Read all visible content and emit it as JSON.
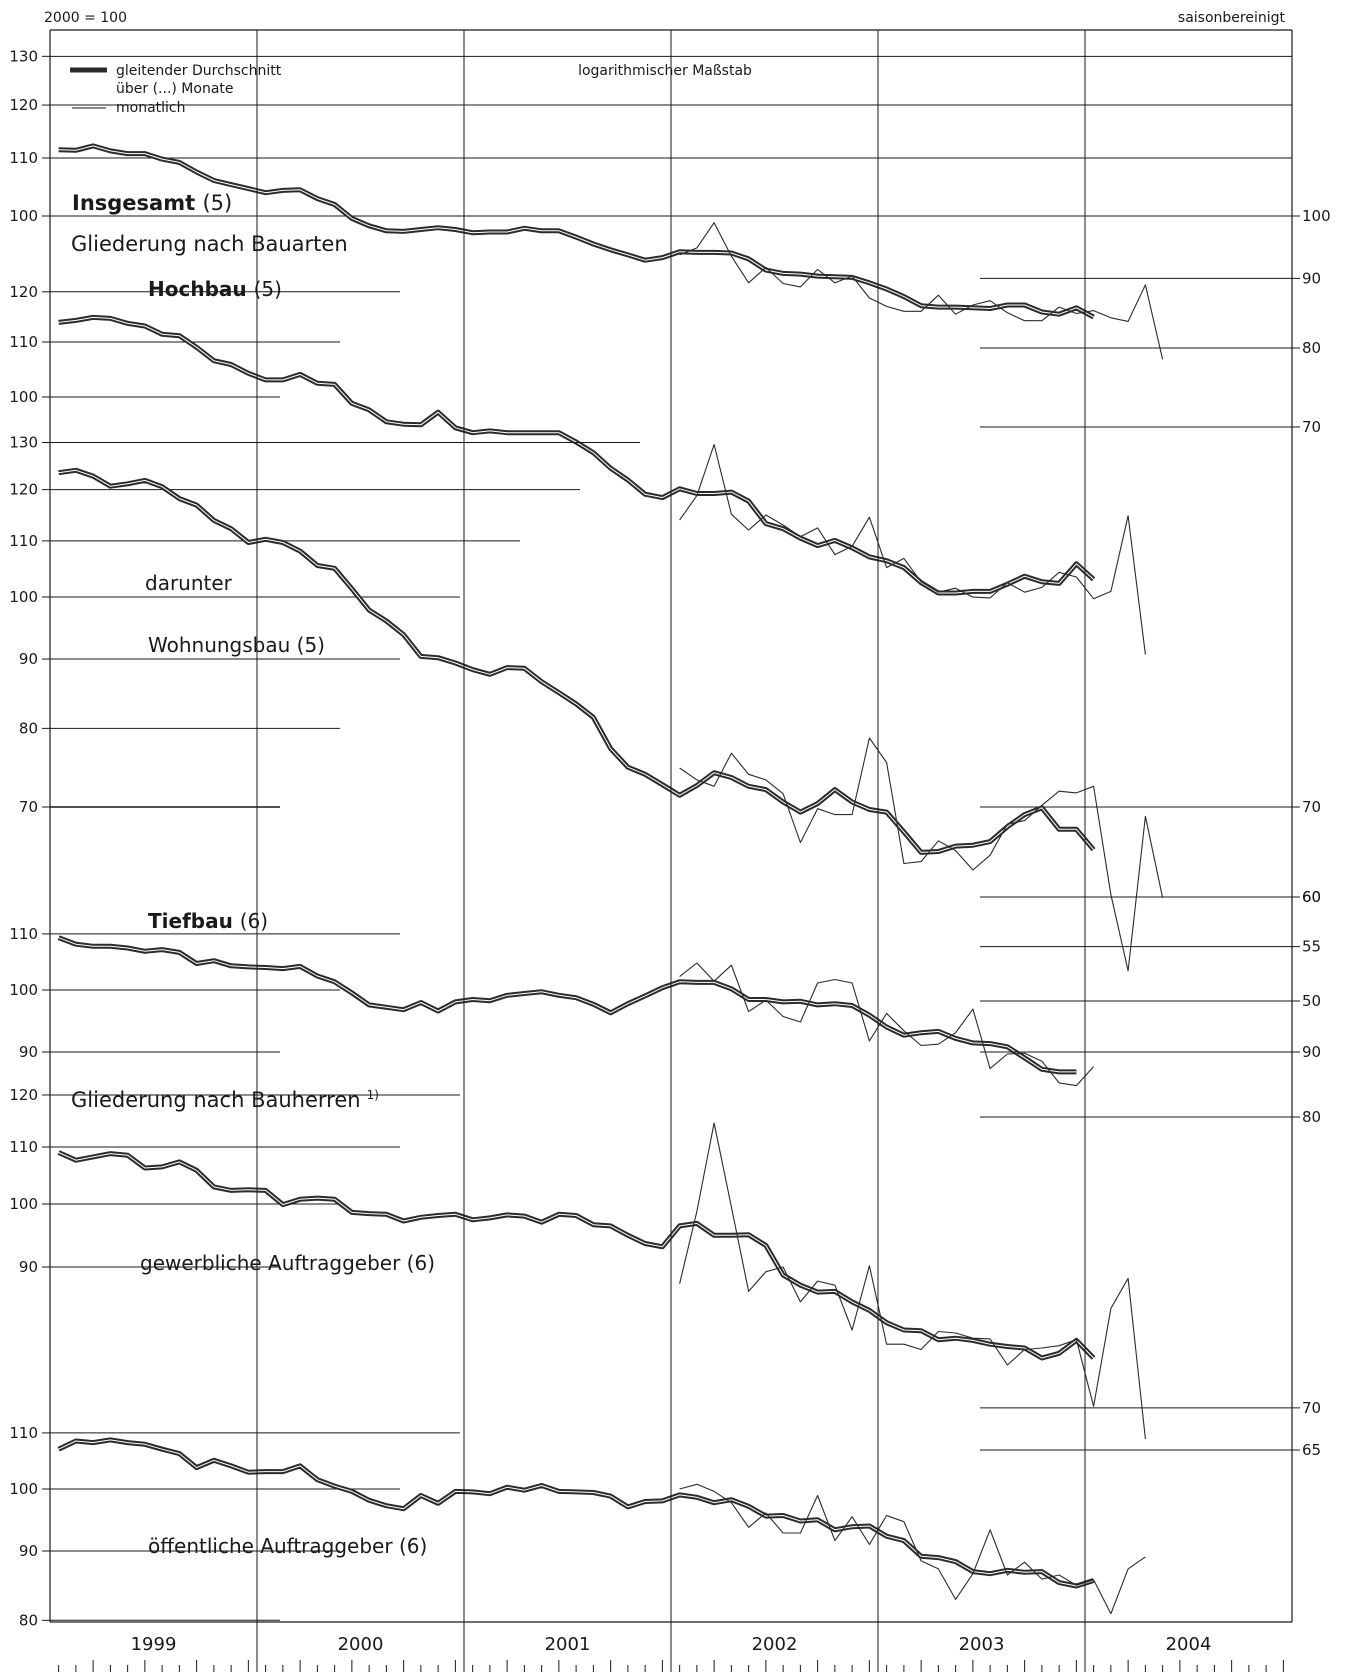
{
  "header": {
    "base": "2000 = 100",
    "adjustment": "saisonbereinigt",
    "scale_note": "logarithmischer Maßstab",
    "legend_thick_line1": "gleitender Durchschnitt",
    "legend_thick_line2": "über (...) Monate",
    "legend_thin": "monatlich",
    "section_bauarten": "Gliederung nach Bauarten",
    "section_bauherren": "Gliederung nach Bauherren",
    "section_bauherren_note": "1)",
    "darunter": "darunter"
  },
  "colors": {
    "line": "#2b2b2b",
    "grid": "#1a1a1a",
    "background": "#ffffff"
  },
  "chart_data": [
    {
      "type": "line",
      "log_scale": true,
      "title": "Insgesamt",
      "title_suffix": "(5)",
      "x_start": "1999-01",
      "x_end": "2004-12",
      "left_ticks": [
        100,
        110,
        120,
        130
      ],
      "right_ticks": [],
      "series": [
        {
          "style": "average",
          "start": "1999-01",
          "values": [
            111.5,
            111.4,
            112.2,
            111.3,
            110.8,
            110.8,
            109.8,
            109.2,
            107.5,
            106.0,
            105.3,
            104.6,
            103.9,
            104.3,
            104.4,
            102.9,
            101.9,
            99.6,
            98.4,
            97.6,
            97.5,
            97.8,
            98.1,
            97.8,
            97.3,
            97.4,
            97.4,
            98.0,
            97.6,
            97.6,
            96.6,
            95.5,
            94.6,
            93.8,
            93.0,
            93.4,
            94.3,
            94.2,
            94.2,
            94.1,
            93.2,
            91.5,
            91.0,
            90.9,
            90.6,
            90.5,
            90.4,
            89.6,
            88.7,
            87.6,
            86.3,
            86.1,
            86.1,
            86.0,
            85.9,
            86.4,
            86.4,
            85.4,
            85.1,
            86.0,
            84.7
          ]
        },
        {
          "style": "monthly",
          "start": "2002-01",
          "values": [
            93.8,
            94.9,
            98.9,
            93.6,
            89.6,
            91.9,
            89.5,
            89.0,
            91.6,
            89.6,
            90.6,
            87.4,
            86.2,
            85.5,
            85.5,
            87.8,
            85.1,
            86.4,
            87.0,
            85.3,
            84.2,
            84.2,
            86.1,
            85.2,
            85.6,
            84.6,
            84.1,
            89.3,
            79.0
          ]
        }
      ]
    },
    {
      "type": "line",
      "log_scale": true,
      "title": "Hochbau",
      "title_suffix": "(5)",
      "x_start": "1999-01",
      "x_end": "2004-12",
      "left_ticks": [
        100,
        110,
        120
      ],
      "right_ticks": [
        70,
        80,
        90,
        100
      ],
      "series": [
        {
          "style": "average",
          "start": "1999-01",
          "values": [
            113.8,
            114.2,
            114.8,
            114.6,
            113.6,
            113.1,
            111.5,
            111.2,
            109.0,
            106.5,
            105.8,
            104.2,
            103.0,
            103.0,
            104.0,
            102.4,
            102.2,
            98.9,
            97.8,
            95.8,
            95.4,
            95.3,
            97.4,
            94.8,
            94.0,
            94.3,
            94.0,
            94.0,
            94.0,
            94.0,
            92.5,
            90.8,
            88.4,
            86.6,
            84.5,
            84.0,
            85.3,
            84.6,
            84.6,
            84.8,
            83.5,
            80.3,
            79.6,
            78.3,
            77.3,
            78.0,
            77.0,
            75.8,
            75.3,
            74.4,
            72.5,
            71.2,
            71.2,
            71.4,
            71.4,
            72.3,
            73.3,
            72.6,
            72.4,
            74.9,
            72.9
          ]
        },
        {
          "style": "monthly",
          "start": "2002-01",
          "values": [
            80.8,
            84.3,
            92.1,
            81.6,
            79.4,
            81.5,
            80.1,
            78.5,
            79.7,
            76.1,
            77.2,
            81.2,
            74.4,
            75.6,
            72.6,
            71.3,
            71.8,
            70.7,
            70.6,
            72.5,
            71.3,
            71.9,
            73.8,
            73.2,
            70.5,
            71.4,
            81.4,
            64.0
          ]
        }
      ]
    },
    {
      "type": "line",
      "log_scale": true,
      "title": "Wohnungsbau",
      "title_suffix": "(5)",
      "prefix": "darunter",
      "x_start": "1999-01",
      "x_end": "2004-12",
      "left_ticks": [
        70,
        80,
        90,
        100,
        110,
        120,
        130
      ],
      "right_ticks": [
        60,
        70
      ],
      "series": [
        {
          "style": "average",
          "start": "1999-01",
          "values": [
            123.5,
            124.0,
            122.8,
            120.7,
            121.2,
            121.9,
            120.6,
            118.2,
            116.9,
            113.9,
            112.3,
            109.7,
            110.3,
            109.7,
            108.1,
            105.5,
            105.0,
            101.4,
            97.8,
            96.0,
            93.8,
            90.4,
            90.2,
            89.4,
            88.4,
            87.7,
            88.7,
            88.6,
            86.6,
            85.0,
            83.4,
            81.5,
            77.3,
            74.9,
            74.0,
            72.7,
            71.4,
            72.6,
            74.2,
            73.6,
            72.5,
            72.1,
            70.6,
            69.4,
            70.4,
            72.1,
            70.6,
            69.7,
            69.4,
            67.1,
            64.8,
            64.9,
            65.5,
            65.6,
            66.0,
            67.7,
            69.1,
            69.9,
            67.4,
            67.4,
            65.1
          ]
        },
        {
          "style": "monthly",
          "start": "2002-01",
          "values": [
            74.8,
            73.3,
            72.5,
            76.7,
            74.0,
            73.3,
            71.6,
            65.9,
            69.8,
            69.1,
            69.1,
            78.7,
            75.5,
            63.6,
            63.8,
            66.1,
            65.0,
            62.9,
            64.5,
            68.0,
            68.4,
            70.2,
            71.9,
            71.7,
            72.5,
            60.3,
            53.0,
            68.9,
            60.0
          ]
        }
      ]
    },
    {
      "type": "line",
      "log_scale": true,
      "title": "Tiefbau",
      "title_suffix": "(6)",
      "x_start": "1999-01",
      "x_end": "2004-12",
      "left_ticks": [
        90,
        100,
        110
      ],
      "right_ticks": [
        50,
        55,
        60
      ],
      "series": [
        {
          "style": "average",
          "start": "1999-01",
          "values": [
            109.3,
            108.1,
            107.7,
            107.7,
            107.4,
            106.8,
            107.1,
            106.6,
            104.6,
            105.1,
            104.2,
            104.0,
            103.9,
            103.7,
            104.1,
            102.4,
            101.4,
            99.5,
            97.5,
            97.1,
            96.7,
            97.9,
            96.5,
            98.0,
            98.4,
            98.2,
            99.1,
            99.4,
            99.7,
            99.1,
            98.7,
            97.6,
            96.2,
            97.7,
            99.0,
            100.4,
            101.4,
            101.3,
            101.3,
            100.2,
            98.4,
            98.4,
            98.0,
            98.1,
            97.5,
            97.7,
            97.4,
            95.8,
            93.9,
            92.6,
            93.0,
            93.2,
            92.1,
            91.4,
            91.3,
            90.8,
            89.1,
            87.4,
            87.0,
            87.0
          ]
        },
        {
          "style": "monthly",
          "start": "2002-01",
          "values": [
            102.3,
            104.7,
            101.5,
            104.3,
            96.4,
            98.3,
            95.6,
            94.7,
            101.2,
            101.8,
            101.2,
            91.7,
            96.1,
            93.3,
            91.0,
            91.2,
            93.0,
            96.8,
            87.5,
            89.7,
            89.8,
            88.6,
            85.4,
            85.0,
            87.8
          ]
        }
      ]
    },
    {
      "type": "line",
      "log_scale": true,
      "title": "gewerbliche Auftraggeber",
      "title_suffix": "(6)",
      "x_start": "1999-01",
      "x_end": "2004-12",
      "left_ticks": [
        90,
        100,
        110,
        120
      ],
      "right_ticks": [
        80,
        90
      ],
      "series": [
        {
          "style": "average",
          "start": "1999-01",
          "values": [
            109.0,
            107.6,
            108.2,
            108.8,
            108.5,
            106.2,
            106.4,
            107.3,
            105.8,
            102.9,
            102.3,
            102.4,
            102.3,
            99.9,
            100.8,
            101.0,
            100.8,
            98.6,
            98.4,
            98.3,
            97.2,
            97.8,
            98.1,
            98.3,
            97.4,
            97.7,
            98.2,
            98.0,
            97.0,
            98.3,
            98.1,
            96.6,
            96.4,
            94.9,
            93.6,
            93.1,
            96.4,
            96.8,
            94.9,
            94.9,
            95.0,
            93.3,
            88.8,
            87.3,
            86.3,
            86.4,
            84.9,
            83.7,
            82.0,
            81.0,
            80.9,
            79.7,
            79.9,
            79.6,
            79.1,
            78.8,
            78.6,
            77.3,
            77.9,
            79.6,
            77.3
          ]
        },
        {
          "style": "monthly",
          "start": "2002-01",
          "values": [
            87.5,
            98.8,
            114.5,
            99.5,
            86.4,
            89.3,
            90.0,
            84.9,
            87.9,
            87.3,
            81.0,
            90.2,
            79.1,
            79.1,
            78.4,
            80.8,
            80.6,
            79.9,
            79.8,
            76.4,
            78.4,
            78.6,
            78.9,
            79.7,
            71.3,
            84.0,
            88.3,
            67.5
          ]
        }
      ]
    },
    {
      "type": "line",
      "log_scale": true,
      "title": "öffentliche Auftraggeber",
      "title_suffix": "(6)",
      "x_start": "1999-01",
      "x_end": "2004-12",
      "left_ticks": [
        80,
        90,
        100,
        110
      ],
      "right_ticks": [
        65,
        70
      ],
      "series": [
        {
          "style": "average",
          "start": "1999-01",
          "values": [
            107.0,
            108.5,
            108.2,
            108.7,
            108.2,
            107.9,
            107.0,
            106.2,
            103.7,
            105.0,
            104.0,
            102.9,
            103.0,
            103.0,
            104.0,
            101.6,
            100.5,
            99.6,
            98.1,
            97.2,
            96.7,
            98.9,
            97.6,
            99.6,
            99.5,
            99.2,
            100.3,
            99.8,
            100.6,
            99.6,
            99.5,
            99.4,
            98.8,
            97.0,
            97.9,
            98.0,
            99.0,
            98.6,
            97.7,
            98.2,
            97.1,
            95.5,
            95.6,
            94.7,
            94.9,
            93.3,
            93.8,
            93.9,
            92.3,
            91.6,
            89.2,
            89.0,
            88.4,
            86.9,
            86.6,
            87.1,
            86.8,
            86.9,
            85.3,
            84.8,
            85.6
          ]
        },
        {
          "style": "monthly",
          "start": "2002-01",
          "values": [
            100.0,
            100.8,
            99.6,
            97.7,
            93.7,
            96.0,
            92.8,
            92.8,
            98.9,
            91.6,
            95.4,
            91.0,
            95.6,
            94.6,
            88.5,
            87.3,
            82.9,
            86.6,
            93.3,
            86.4,
            88.3,
            85.8,
            86.4,
            84.9,
            85.7,
            80.9,
            87.3,
            89.1
          ]
        }
      ]
    }
  ],
  "years": [
    "1999",
    "2000",
    "2001",
    "2002",
    "2003",
    "2004"
  ]
}
